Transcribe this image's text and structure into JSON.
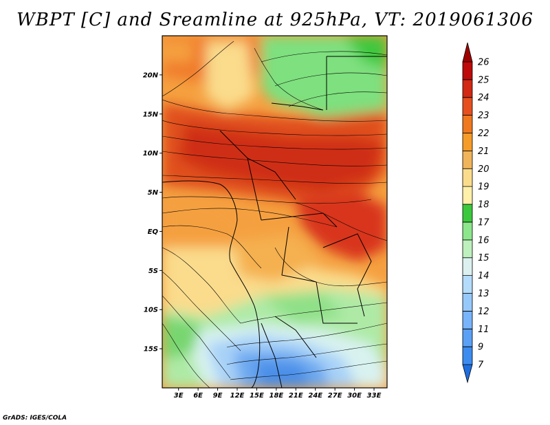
{
  "title": "WBPT [C] and Sreamline at 925hPa, VT: 2019061306",
  "credit": "GrADS: IGES/COLA",
  "chart_data": {
    "type": "heatmap",
    "variable": "Wet-bulb potential temperature",
    "units": "C",
    "level": "925hPa",
    "valid_time": "2019061306",
    "overlay": "streamlines",
    "x_axis": {
      "ticks": [
        "3E",
        "6E",
        "9E",
        "12E",
        "15E",
        "18E",
        "21E",
        "24E",
        "27E",
        "30E",
        "33E"
      ],
      "values": [
        3,
        6,
        9,
        12,
        15,
        18,
        21,
        24,
        27,
        30,
        33
      ],
      "range": [
        0.5,
        35
      ]
    },
    "y_axis": {
      "ticks": [
        "20N",
        "15N",
        "10N",
        "5N",
        "EQ",
        "5S",
        "10S",
        "15S"
      ],
      "values": [
        20,
        15,
        10,
        5,
        0,
        -5,
        -10,
        -15
      ],
      "range": [
        -20,
        25
      ]
    },
    "colorbar": {
      "labels": [
        "7",
        "9",
        "11",
        "12",
        "13",
        "14",
        "15",
        "16",
        "17",
        "18",
        "19",
        "20",
        "21",
        "22",
        "23",
        "24",
        "25",
        "26"
      ],
      "colors": [
        "#1e6ee0",
        "#3c8cf0",
        "#5aa0f5",
        "#78b4fa",
        "#96c8fa",
        "#b4dcfa",
        "#dcf0f0",
        "#bef0be",
        "#8ce68c",
        "#3cc83c",
        "#fff0aa",
        "#fadc8c",
        "#f0b45a",
        "#f59b28",
        "#f0781e",
        "#e6501e",
        "#d22814",
        "#be0a0a",
        "#a00000"
      ]
    }
  }
}
